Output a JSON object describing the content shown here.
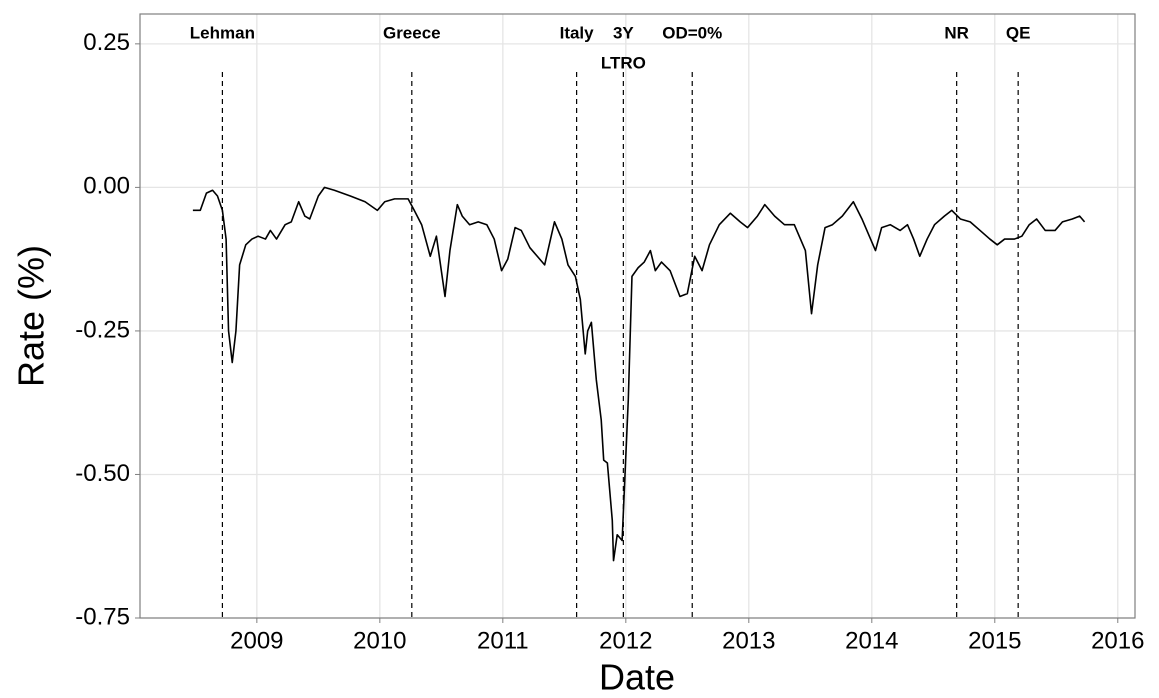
{
  "chart_data": {
    "type": "line",
    "x_label": "Date",
    "y_label": "Rate (%)",
    "xlim": [
      2008.05,
      2016.14
    ],
    "ylim": [
      -0.75,
      0.302
    ],
    "xticks": [
      2009,
      2010,
      2011,
      2012,
      2013,
      2014,
      2015,
      2016
    ],
    "yticks": [
      {
        "value": 0.25,
        "label": "0.25"
      },
      {
        "value": 0,
        "label": "0.00"
      },
      {
        "value": -0.25,
        "label": "-0.25"
      },
      {
        "value": -0.5,
        "label": "-0.50"
      },
      {
        "value": -0.75,
        "label": "-0.75"
      }
    ],
    "grid": true,
    "color": "#000000",
    "x": [
      2008.48,
      2008.54,
      2008.59,
      2008.64,
      2008.68,
      2008.72,
      2008.75,
      2008.77,
      2008.8,
      2008.83,
      2008.86,
      2008.91,
      2008.96,
      2009.01,
      2009.07,
      2009.11,
      2009.16,
      2009.23,
      2009.28,
      2009.34,
      2009.39,
      2009.43,
      2009.5,
      2009.55,
      2009.63,
      2009.76,
      2009.88,
      2009.98,
      2010.04,
      2010.12,
      2010.23,
      2010.28,
      2010.34,
      2010.41,
      2010.46,
      2010.53,
      2010.57,
      2010.63,
      2010.67,
      2010.73,
      2010.8,
      2010.87,
      2010.93,
      2010.99,
      2011.04,
      2011.1,
      2011.15,
      2011.22,
      2011.28,
      2011.34,
      2011.42,
      2011.48,
      2011.53,
      2011.59,
      2011.63,
      2011.67,
      2011.69,
      2011.72,
      2011.76,
      2011.8,
      2011.82,
      2011.85,
      2011.89,
      2011.9,
      2011.93,
      2011.97,
      2012.02,
      2012.05,
      2012.1,
      2012.15,
      2012.2,
      2012.24,
      2012.29,
      2012.36,
      2012.44,
      2012.5,
      2012.56,
      2012.62,
      2012.68,
      2012.76,
      2012.85,
      2012.93,
      2012.99,
      2013.07,
      2013.13,
      2013.21,
      2013.29,
      2013.37,
      2013.46,
      2013.51,
      2013.56,
      2013.62,
      2013.68,
      2013.76,
      2013.85,
      2013.92,
      2013.98,
      2014.03,
      2014.08,
      2014.15,
      2014.23,
      2014.29,
      2014.34,
      2014.39,
      2014.45,
      2014.51,
      2014.59,
      2014.65,
      2014.72,
      2014.8,
      2014.88,
      2014.96,
      2015.02,
      2015.08,
      2015.16,
      2015.22,
      2015.28,
      2015.34,
      2015.41,
      2015.49,
      2015.55,
      2015.63,
      2015.69,
      2015.73
    ],
    "values": [
      -0.04,
      -0.04,
      -0.01,
      -0.005,
      -0.015,
      -0.04,
      -0.09,
      -0.25,
      -0.305,
      -0.25,
      -0.135,
      -0.1,
      -0.09,
      -0.085,
      -0.09,
      -0.075,
      -0.09,
      -0.065,
      -0.06,
      -0.025,
      -0.05,
      -0.055,
      -0.015,
      0.0,
      -0.005,
      -0.015,
      -0.025,
      -0.04,
      -0.025,
      -0.02,
      -0.02,
      -0.04,
      -0.065,
      -0.12,
      -0.085,
      -0.19,
      -0.11,
      -0.03,
      -0.05,
      -0.065,
      -0.06,
      -0.065,
      -0.09,
      -0.145,
      -0.125,
      -0.07,
      -0.075,
      -0.105,
      -0.12,
      -0.135,
      -0.06,
      -0.09,
      -0.135,
      -0.155,
      -0.195,
      -0.29,
      -0.25,
      -0.235,
      -0.335,
      -0.405,
      -0.475,
      -0.48,
      -0.58,
      -0.65,
      -0.605,
      -0.615,
      -0.37,
      -0.155,
      -0.14,
      -0.13,
      -0.11,
      -0.145,
      -0.13,
      -0.145,
      -0.19,
      -0.185,
      -0.12,
      -0.145,
      -0.1,
      -0.065,
      -0.045,
      -0.06,
      -0.07,
      -0.05,
      -0.03,
      -0.05,
      -0.065,
      -0.065,
      -0.11,
      -0.22,
      -0.135,
      -0.07,
      -0.065,
      -0.05,
      -0.025,
      -0.055,
      -0.085,
      -0.11,
      -0.07,
      -0.065,
      -0.075,
      -0.065,
      -0.09,
      -0.12,
      -0.09,
      -0.065,
      -0.05,
      -0.04,
      -0.055,
      -0.06,
      -0.075,
      -0.09,
      -0.1,
      -0.09,
      -0.09,
      -0.085,
      -0.065,
      -0.055,
      -0.075,
      -0.075,
      -0.06,
      -0.055,
      -0.05,
      -0.06
    ],
    "annotations": [
      {
        "x": 2008.72,
        "label": [
          "Lehman"
        ]
      },
      {
        "x": 2010.26,
        "label": [
          "Greece"
        ]
      },
      {
        "x": 2011.6,
        "label": [
          "Italy"
        ]
      },
      {
        "x": 2011.98,
        "label": [
          "3Y",
          "LTRO"
        ]
      },
      {
        "x": 2012.54,
        "label": [
          "OD=0%"
        ]
      },
      {
        "x": 2014.69,
        "label": [
          "NR"
        ]
      },
      {
        "x": 2015.19,
        "label": [
          "QE"
        ]
      }
    ]
  }
}
